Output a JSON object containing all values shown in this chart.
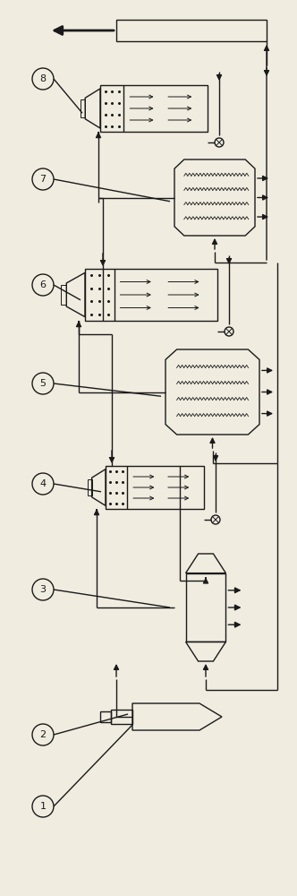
{
  "bg_color": "#f0ece0",
  "line_color": "#1a1a1a",
  "figsize": [
    3.32,
    10.0
  ],
  "dpi": 100,
  "lw": 1.0
}
